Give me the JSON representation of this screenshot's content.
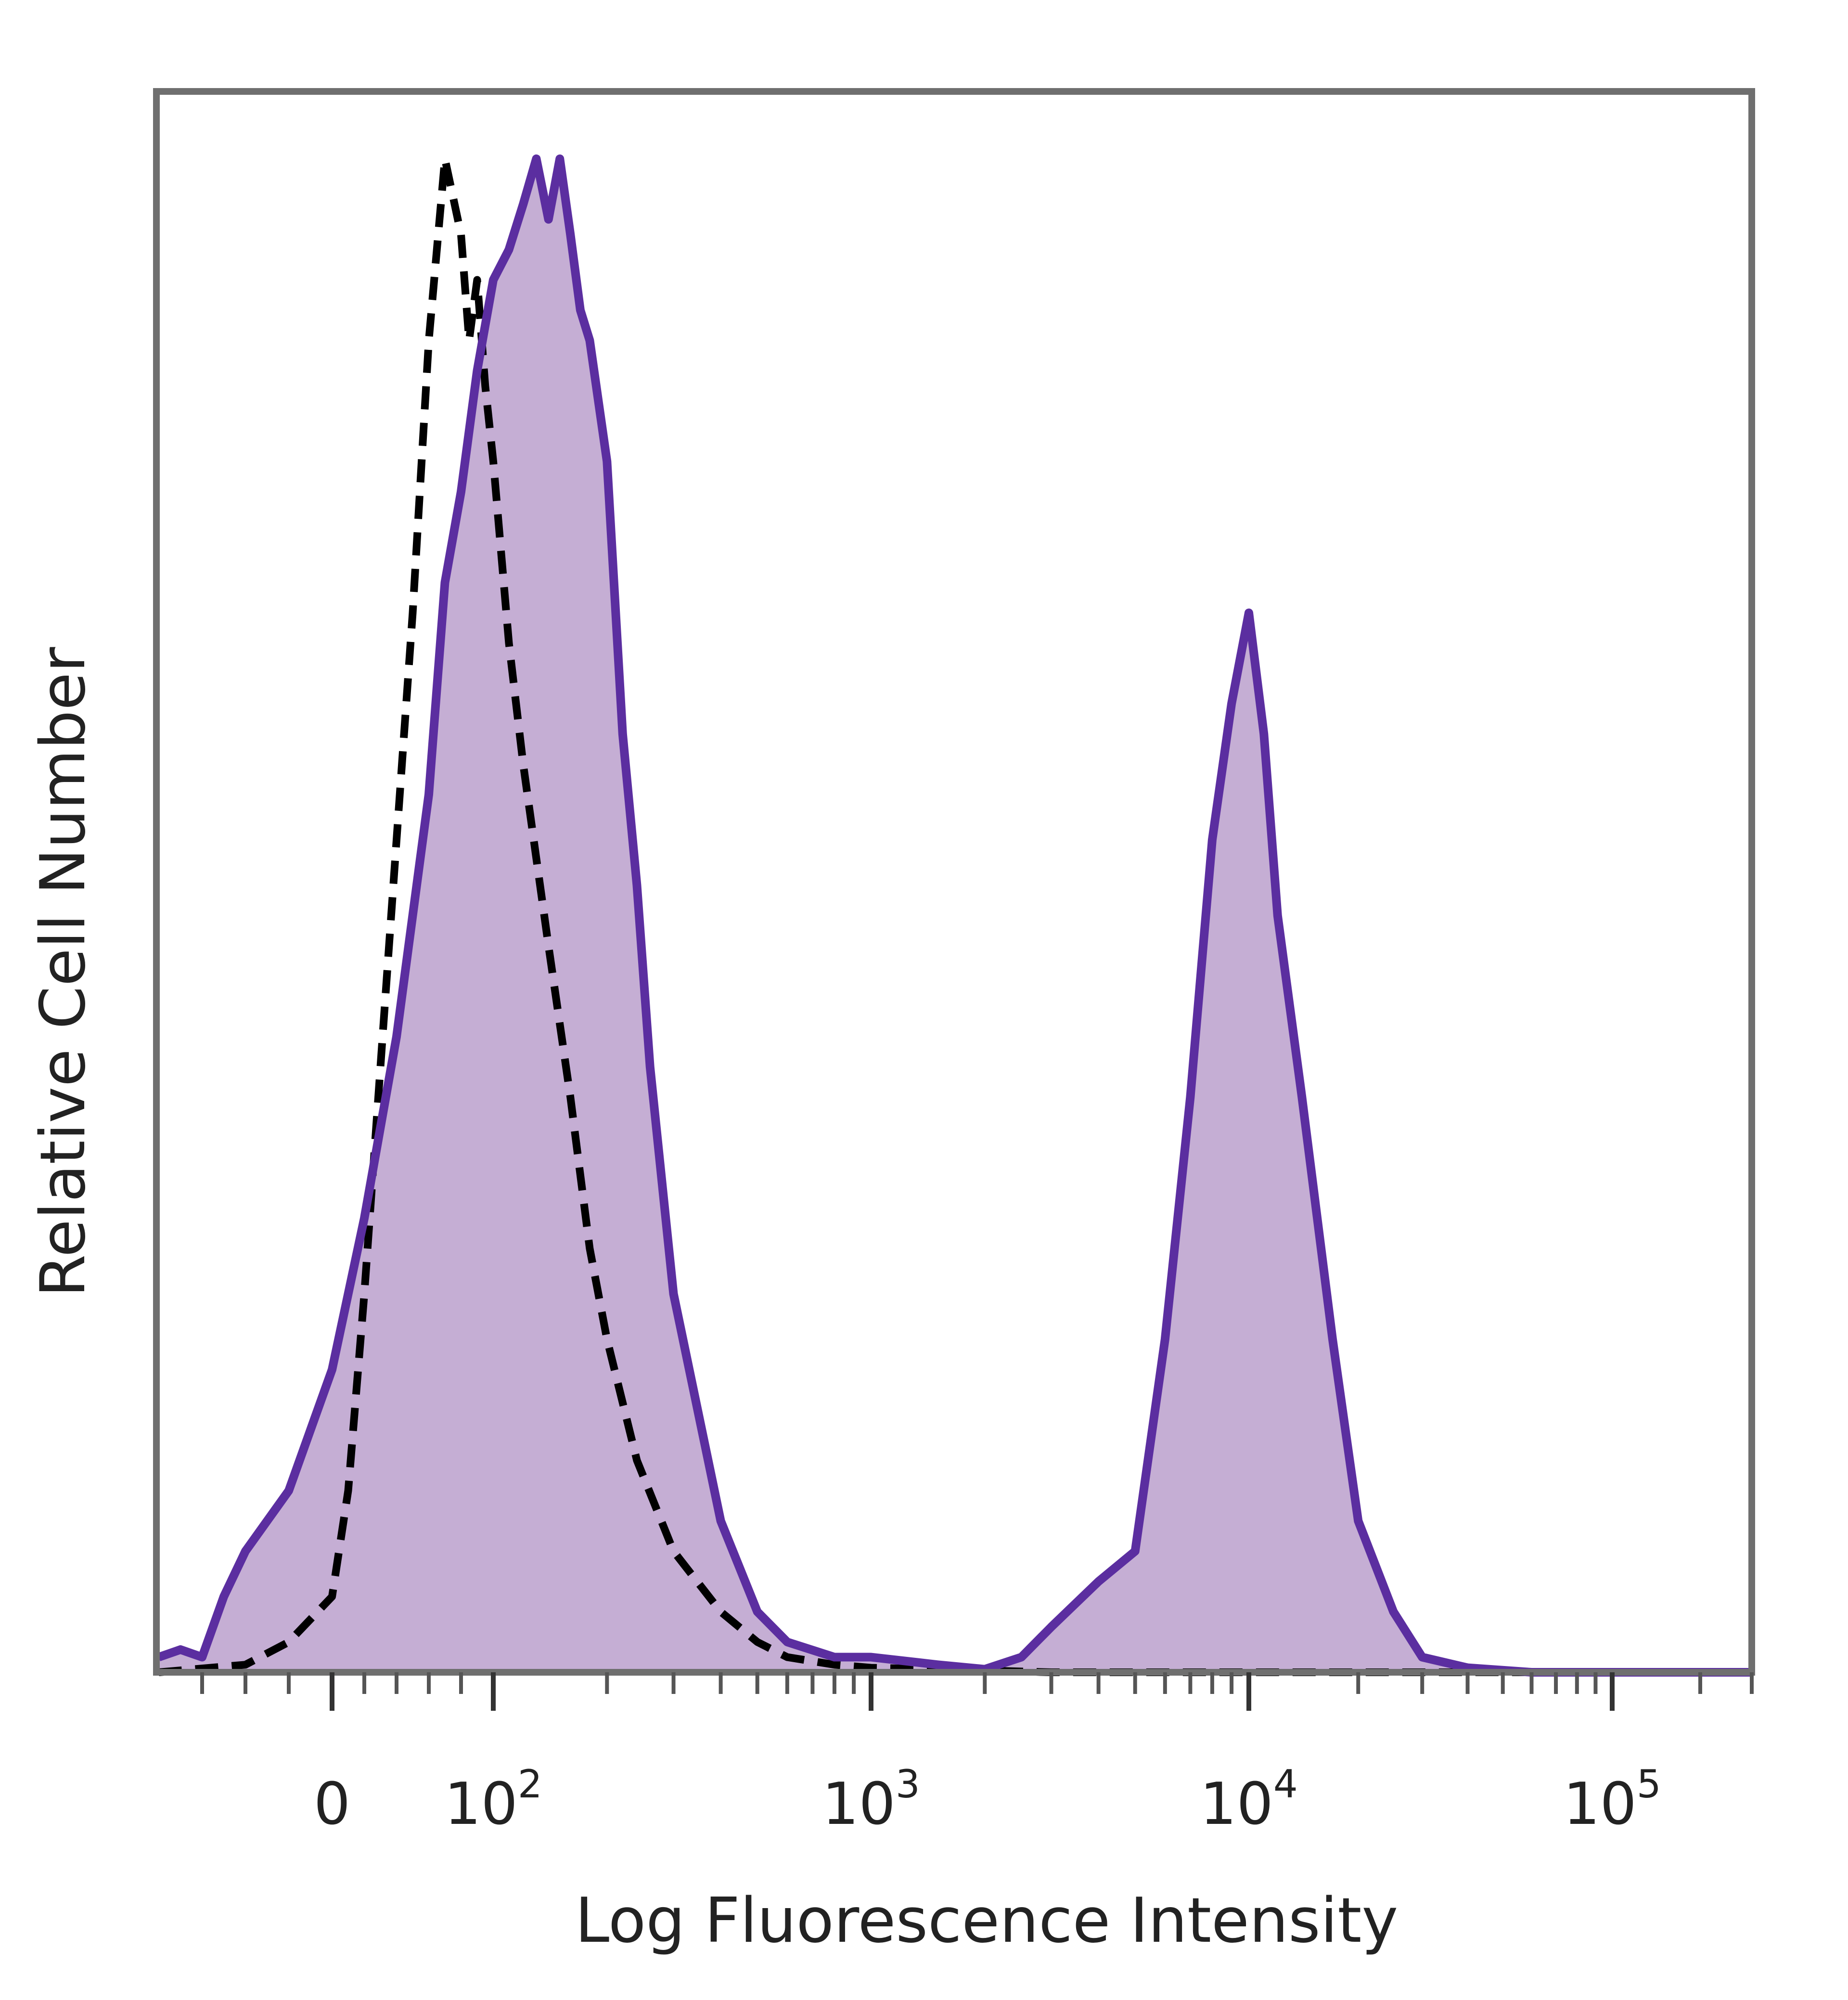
{
  "chart_data": {
    "type": "area",
    "title": "",
    "xlabel": "Log Fluorescence Intensity",
    "ylabel": "Relative Cell Number",
    "x_scale": "biexponential (log)",
    "xlim": [
      -80,
      300000
    ],
    "ylim": [
      0,
      100
    ],
    "x_ticks": [
      {
        "value": 0,
        "label": "0"
      },
      {
        "value": 100,
        "base": "10",
        "exp": "2"
      },
      {
        "value": 1000,
        "base": "10",
        "exp": "3"
      },
      {
        "value": 10000,
        "base": "10",
        "exp": "4"
      },
      {
        "value": 100000,
        "base": "10",
        "exp": "5"
      }
    ],
    "grid": false,
    "legend": "none",
    "series": [
      {
        "style": "dashed",
        "color": "#000000",
        "x": [
          -80,
          -40,
          -20,
          0,
          10,
          20,
          30,
          40,
          50,
          60,
          70,
          80,
          85,
          90,
          95,
          100,
          110,
          120,
          140,
          160,
          180,
          200,
          240,
          300,
          400,
          500,
          600,
          800,
          1000,
          1500,
          3000,
          10000,
          50000,
          300000
        ],
        "y": [
          0,
          0.5,
          2,
          5,
          12,
          25,
          40,
          55,
          70,
          88,
          100,
          95,
          88,
          92,
          85,
          80,
          68,
          60,
          48,
          38,
          28,
          22,
          14,
          8,
          4,
          2,
          1,
          0.5,
          0.3,
          0.2,
          0,
          0,
          0,
          0
        ]
      },
      {
        "style": "solid-filled",
        "color": "#5b2ea0",
        "fill": "#c5aed4",
        "x": [
          -80,
          -70,
          -60,
          -50,
          -40,
          -20,
          0,
          20,
          40,
          60,
          70,
          80,
          90,
          100,
          110,
          120,
          130,
          140,
          150,
          160,
          170,
          180,
          200,
          220,
          240,
          260,
          300,
          400,
          500,
          600,
          800,
          1000,
          1500,
          2000,
          2500,
          3000,
          4000,
          5000,
          6000,
          7000,
          8000,
          9000,
          10000,
          11000,
          12000,
          14000,
          17000,
          20000,
          25000,
          30000,
          40000,
          60000,
          100000,
          300000
        ],
        "y": [
          1,
          1.5,
          1,
          5,
          8,
          12,
          20,
          30,
          42,
          58,
          72,
          78,
          86,
          92,
          94,
          97,
          100,
          96,
          100,
          95,
          90,
          88,
          80,
          62,
          52,
          40,
          25,
          10,
          4,
          2,
          1,
          1,
          0.5,
          0.2,
          1,
          3,
          6,
          8,
          22,
          38,
          55,
          64,
          70,
          62,
          50,
          38,
          22,
          10,
          4,
          1,
          0.3,
          0,
          0,
          0
        ]
      }
    ]
  }
}
